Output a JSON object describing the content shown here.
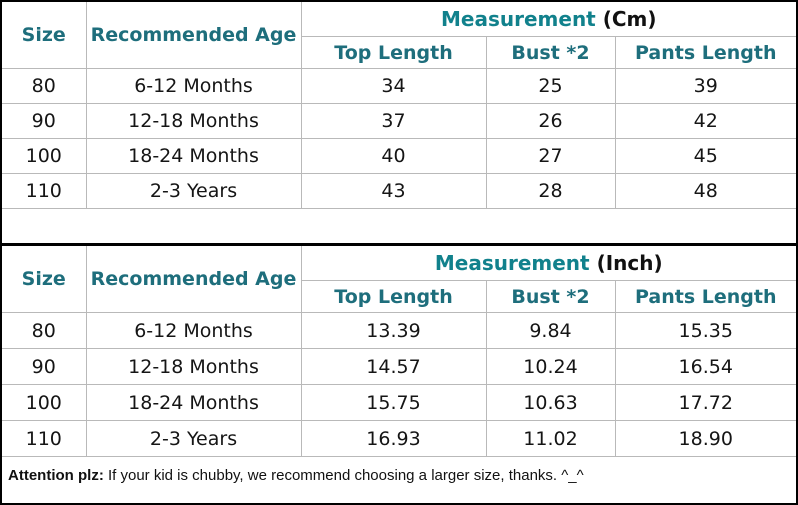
{
  "colors": {
    "header_teal": "#1e6e7c",
    "measurement_teal": "#11818c",
    "grid_line": "#b9b9b9",
    "outer_border": "#000000",
    "background": "#ffffff",
    "data_text": "#151515"
  },
  "columns": {
    "size": "Size",
    "recommended_age": "Recommended Age",
    "top_length": "Top Length",
    "bust": "Bust *2",
    "pants_length": "Pants Length"
  },
  "cm_table": {
    "measurement_label": "Measurement",
    "unit_label": "(Cm)",
    "rows": [
      {
        "size": "80",
        "age": "6-12 Months",
        "top": "34",
        "bust": "25",
        "pants": "39"
      },
      {
        "size": "90",
        "age": "12-18 Months",
        "top": "37",
        "bust": "26",
        "pants": "42"
      },
      {
        "size": "100",
        "age": "18-24 Months",
        "top": "40",
        "bust": "27",
        "pants": "45"
      },
      {
        "size": "110",
        "age": "2-3 Years",
        "top": "43",
        "bust": "28",
        "pants": "48"
      }
    ]
  },
  "inch_table": {
    "measurement_label": "Measurement",
    "unit_label": "(Inch)",
    "rows": [
      {
        "size": "80",
        "age": "6-12 Months",
        "top": "13.39",
        "bust": "9.84",
        "pants": "15.35"
      },
      {
        "size": "90",
        "age": "12-18 Months",
        "top": "14.57",
        "bust": "10.24",
        "pants": "16.54"
      },
      {
        "size": "100",
        "age": "18-24 Months",
        "top": "15.75",
        "bust": "10.63",
        "pants": "17.72"
      },
      {
        "size": "110",
        "age": "2-3 Years",
        "top": "16.93",
        "bust": "11.02",
        "pants": "18.90"
      }
    ]
  },
  "note": {
    "label": "Attention plz:",
    "text": " If your kid is chubby, we recommend choosing a larger size, thanks. ^_^"
  }
}
